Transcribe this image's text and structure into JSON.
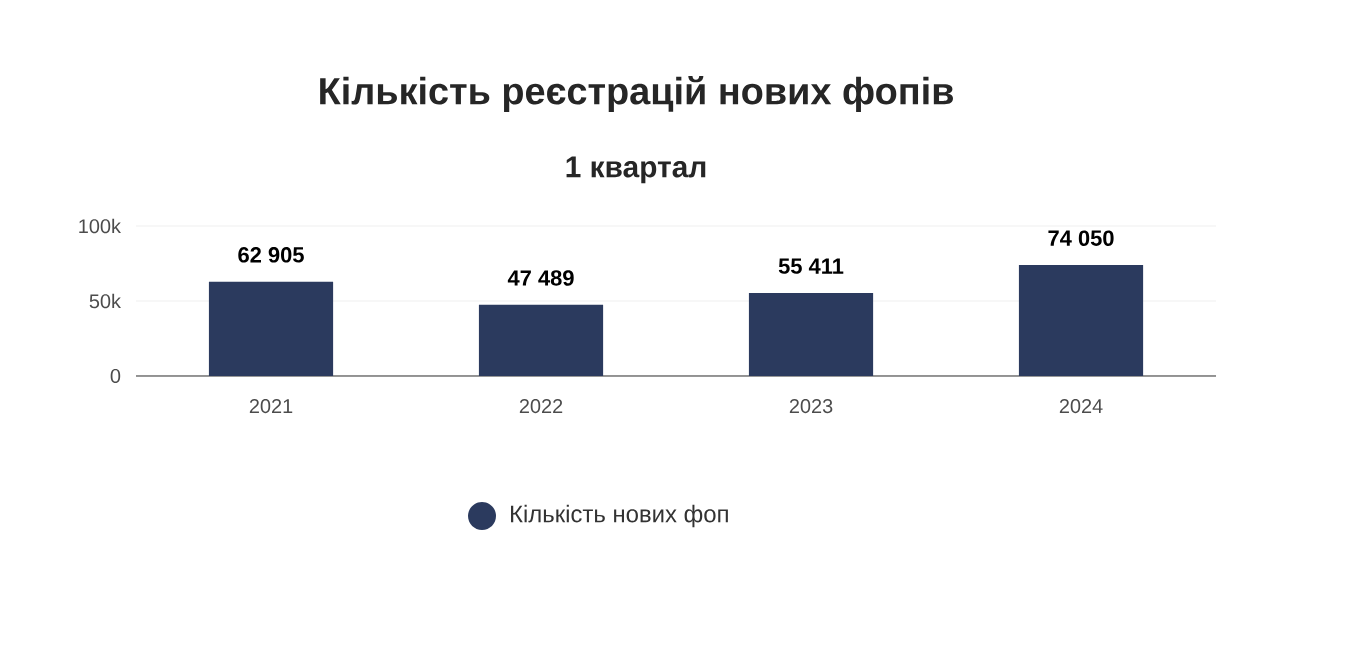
{
  "chart_data": {
    "type": "bar",
    "title": "Кількість реєстрацій нових фопів",
    "subtitle": "1 квартал",
    "categories": [
      "2021",
      "2022",
      "2023",
      "2024"
    ],
    "series": [
      {
        "name": "Кількість нових фоп",
        "color": "#2b3a5e",
        "values": [
          62905,
          47489,
          55411,
          74050
        ],
        "value_labels": [
          "62 905",
          "47 489",
          "55 411",
          "74 050"
        ]
      }
    ],
    "ylim": [
      0,
      100000
    ],
    "yticks": [
      {
        "value": 0,
        "label": "0"
      },
      {
        "value": 50000,
        "label": "50k"
      },
      {
        "value": 100000,
        "label": "100k"
      }
    ],
    "grid": "y",
    "legend": "bottom"
  }
}
